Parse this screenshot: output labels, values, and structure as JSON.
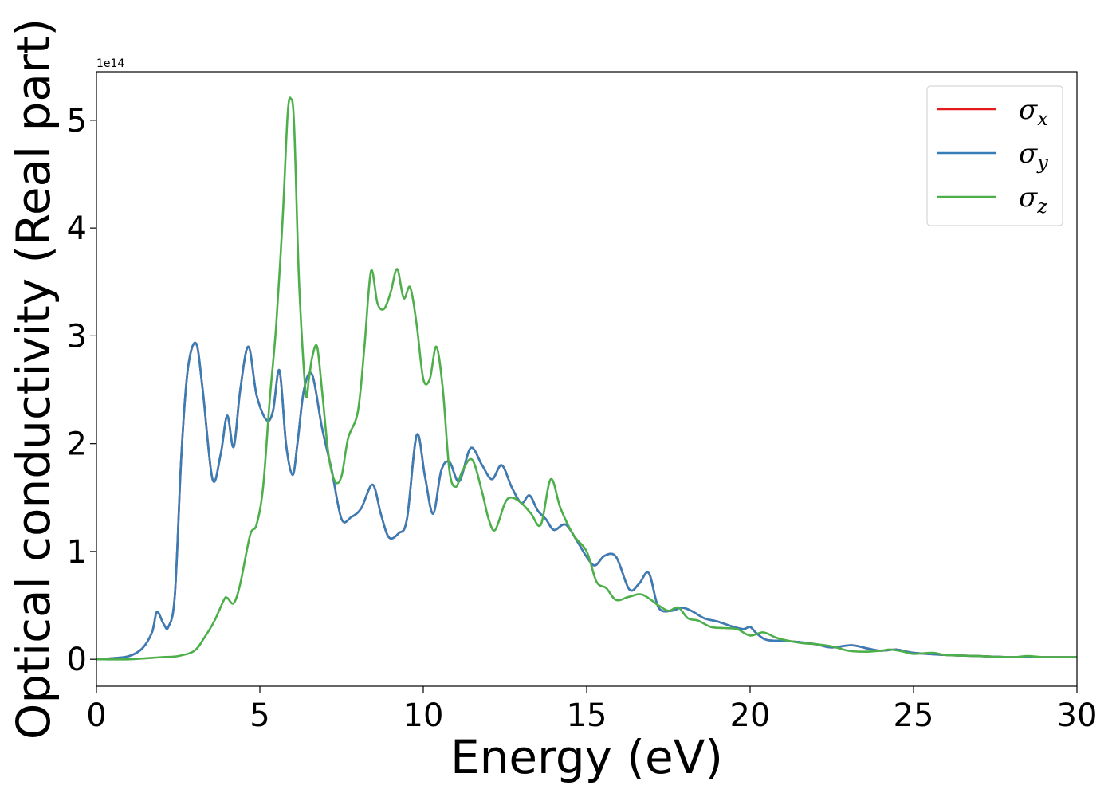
{
  "chart_data": {
    "type": "line",
    "title": "",
    "xlabel": "Energy (eV)",
    "ylabel": "Optical conductivity (Real part)",
    "y_offset_text": "1e14",
    "xlim": [
      0,
      30
    ],
    "ylim": [
      -0.25,
      5.45
    ],
    "xticks": [
      0,
      5,
      10,
      15,
      20,
      25,
      30
    ],
    "yticks": [
      0,
      1,
      2,
      3,
      4,
      5
    ],
    "grid": false,
    "legend_position": "top-right",
    "series": [
      {
        "name": "σ_x",
        "symbol": "σ",
        "subscript": "x",
        "color": "#e41a1c",
        "x": [
          0,
          0.5,
          1.0,
          1.4,
          1.7,
          1.85,
          2.05,
          2.2,
          2.4,
          2.6,
          2.8,
          3.05,
          3.25,
          3.55,
          3.8,
          4.0,
          4.2,
          4.4,
          4.65,
          4.9,
          5.2,
          5.4,
          5.6,
          5.8,
          6.0,
          6.15,
          6.35,
          6.6,
          6.9,
          7.2,
          7.5,
          7.8,
          8.1,
          8.45,
          8.7,
          8.95,
          9.25,
          9.5,
          9.8,
          10.05,
          10.3,
          10.55,
          10.8,
          11.1,
          11.45,
          11.8,
          12.1,
          12.4,
          12.7,
          13.0,
          13.25,
          13.5,
          13.75,
          14.0,
          14.35,
          14.7,
          15.0,
          15.25,
          15.55,
          15.9,
          16.3,
          16.6,
          16.9,
          17.2,
          17.6,
          17.9,
          18.2,
          18.6,
          19.0,
          19.5,
          19.8,
          20.0,
          20.2,
          20.5,
          21.0,
          21.5,
          22.0,
          22.5,
          23.1,
          23.6,
          24.0,
          24.5,
          25.0,
          26.0,
          27.0,
          28.0,
          29.0,
          30.0
        ],
        "values": [
          0,
          0.01,
          0.03,
          0.1,
          0.25,
          0.44,
          0.33,
          0.3,
          0.6,
          1.9,
          2.7,
          2.93,
          2.5,
          1.67,
          1.9,
          2.26,
          1.97,
          2.5,
          2.9,
          2.45,
          2.22,
          2.3,
          2.68,
          2.0,
          1.71,
          2.0,
          2.5,
          2.64,
          2.15,
          1.75,
          1.3,
          1.32,
          1.4,
          1.62,
          1.35,
          1.13,
          1.17,
          1.3,
          2.08,
          1.7,
          1.35,
          1.75,
          1.83,
          1.65,
          1.96,
          1.8,
          1.67,
          1.8,
          1.6,
          1.45,
          1.52,
          1.38,
          1.3,
          1.2,
          1.25,
          1.1,
          0.95,
          0.87,
          0.96,
          0.95,
          0.65,
          0.7,
          0.8,
          0.48,
          0.45,
          0.48,
          0.45,
          0.38,
          0.35,
          0.3,
          0.28,
          0.3,
          0.24,
          0.18,
          0.17,
          0.16,
          0.14,
          0.11,
          0.13,
          0.1,
          0.08,
          0.09,
          0.06,
          0.04,
          0.03,
          0.02,
          0.02,
          0.02
        ]
      },
      {
        "name": "σ_y",
        "symbol": "σ",
        "subscript": "y",
        "color": "#377eb8",
        "x": [
          0,
          0.5,
          1.0,
          1.4,
          1.7,
          1.85,
          2.05,
          2.2,
          2.4,
          2.6,
          2.8,
          3.05,
          3.25,
          3.55,
          3.8,
          4.0,
          4.2,
          4.4,
          4.65,
          4.9,
          5.2,
          5.4,
          5.6,
          5.8,
          6.0,
          6.15,
          6.35,
          6.6,
          6.9,
          7.2,
          7.5,
          7.8,
          8.1,
          8.45,
          8.7,
          8.95,
          9.25,
          9.5,
          9.8,
          10.05,
          10.3,
          10.55,
          10.8,
          11.1,
          11.45,
          11.8,
          12.1,
          12.4,
          12.7,
          13.0,
          13.25,
          13.5,
          13.75,
          14.0,
          14.35,
          14.7,
          15.0,
          15.25,
          15.55,
          15.9,
          16.3,
          16.6,
          16.9,
          17.2,
          17.6,
          17.9,
          18.2,
          18.6,
          19.0,
          19.5,
          19.8,
          20.0,
          20.2,
          20.5,
          21.0,
          21.5,
          22.0,
          22.5,
          23.1,
          23.6,
          24.0,
          24.5,
          25.0,
          26.0,
          27.0,
          28.0,
          29.0,
          30.0
        ],
        "values": [
          0,
          0.01,
          0.03,
          0.1,
          0.25,
          0.44,
          0.33,
          0.3,
          0.6,
          1.9,
          2.7,
          2.93,
          2.5,
          1.67,
          1.9,
          2.26,
          1.97,
          2.5,
          2.9,
          2.45,
          2.22,
          2.3,
          2.68,
          2.0,
          1.71,
          2.0,
          2.5,
          2.64,
          2.15,
          1.75,
          1.3,
          1.32,
          1.4,
          1.62,
          1.35,
          1.13,
          1.17,
          1.3,
          2.08,
          1.7,
          1.35,
          1.75,
          1.83,
          1.65,
          1.96,
          1.8,
          1.67,
          1.8,
          1.6,
          1.45,
          1.52,
          1.38,
          1.3,
          1.2,
          1.25,
          1.1,
          0.95,
          0.87,
          0.96,
          0.95,
          0.65,
          0.7,
          0.8,
          0.48,
          0.45,
          0.48,
          0.45,
          0.38,
          0.35,
          0.3,
          0.28,
          0.3,
          0.24,
          0.18,
          0.17,
          0.16,
          0.14,
          0.11,
          0.13,
          0.1,
          0.08,
          0.09,
          0.06,
          0.04,
          0.03,
          0.02,
          0.02,
          0.02
        ]
      },
      {
        "name": "σ_z",
        "symbol": "σ",
        "subscript": "z",
        "color": "#4daf4a",
        "x": [
          0,
          1.0,
          2.0,
          2.5,
          3.0,
          3.3,
          3.6,
          3.9,
          4.0,
          4.2,
          4.4,
          4.7,
          4.9,
          5.1,
          5.3,
          5.5,
          5.7,
          5.85,
          5.95,
          6.05,
          6.2,
          6.4,
          6.5,
          6.6,
          6.75,
          6.9,
          7.1,
          7.3,
          7.5,
          7.7,
          8.0,
          8.2,
          8.4,
          8.6,
          8.8,
          9.0,
          9.2,
          9.4,
          9.6,
          9.8,
          10.0,
          10.2,
          10.4,
          10.6,
          10.8,
          11.0,
          11.2,
          11.5,
          11.8,
          12.0,
          12.2,
          12.5,
          12.7,
          13.0,
          13.3,
          13.6,
          13.9,
          14.2,
          14.6,
          15.0,
          15.3,
          15.6,
          15.9,
          16.3,
          16.7,
          17.2,
          17.5,
          17.8,
          18.1,
          18.4,
          18.8,
          19.2,
          19.6,
          20.0,
          20.4,
          20.8,
          21.2,
          21.6,
          22.0,
          22.5,
          23.0,
          23.5,
          24.0,
          24.3,
          24.7,
          25.0,
          25.6,
          26.0,
          27.0,
          28.0,
          28.5,
          29.0,
          30.0
        ],
        "values": [
          0,
          0,
          0.02,
          0.03,
          0.08,
          0.2,
          0.35,
          0.55,
          0.57,
          0.52,
          0.7,
          1.15,
          1.25,
          1.6,
          2.4,
          3.1,
          4.1,
          5.05,
          5.2,
          4.95,
          3.5,
          2.48,
          2.6,
          2.8,
          2.9,
          2.5,
          1.9,
          1.65,
          1.7,
          2.05,
          2.3,
          2.9,
          3.6,
          3.3,
          3.25,
          3.4,
          3.62,
          3.35,
          3.45,
          3.1,
          2.6,
          2.6,
          2.9,
          2.5,
          1.75,
          1.6,
          1.75,
          1.85,
          1.55,
          1.3,
          1.2,
          1.45,
          1.5,
          1.45,
          1.35,
          1.25,
          1.67,
          1.4,
          1.15,
          1.0,
          0.72,
          0.66,
          0.55,
          0.58,
          0.6,
          0.5,
          0.45,
          0.48,
          0.38,
          0.36,
          0.3,
          0.29,
          0.28,
          0.22,
          0.25,
          0.2,
          0.17,
          0.15,
          0.14,
          0.12,
          0.08,
          0.07,
          0.08,
          0.09,
          0.07,
          0.05,
          0.06,
          0.04,
          0.03,
          0.02,
          0.03,
          0.02,
          0.02
        ]
      }
    ]
  }
}
